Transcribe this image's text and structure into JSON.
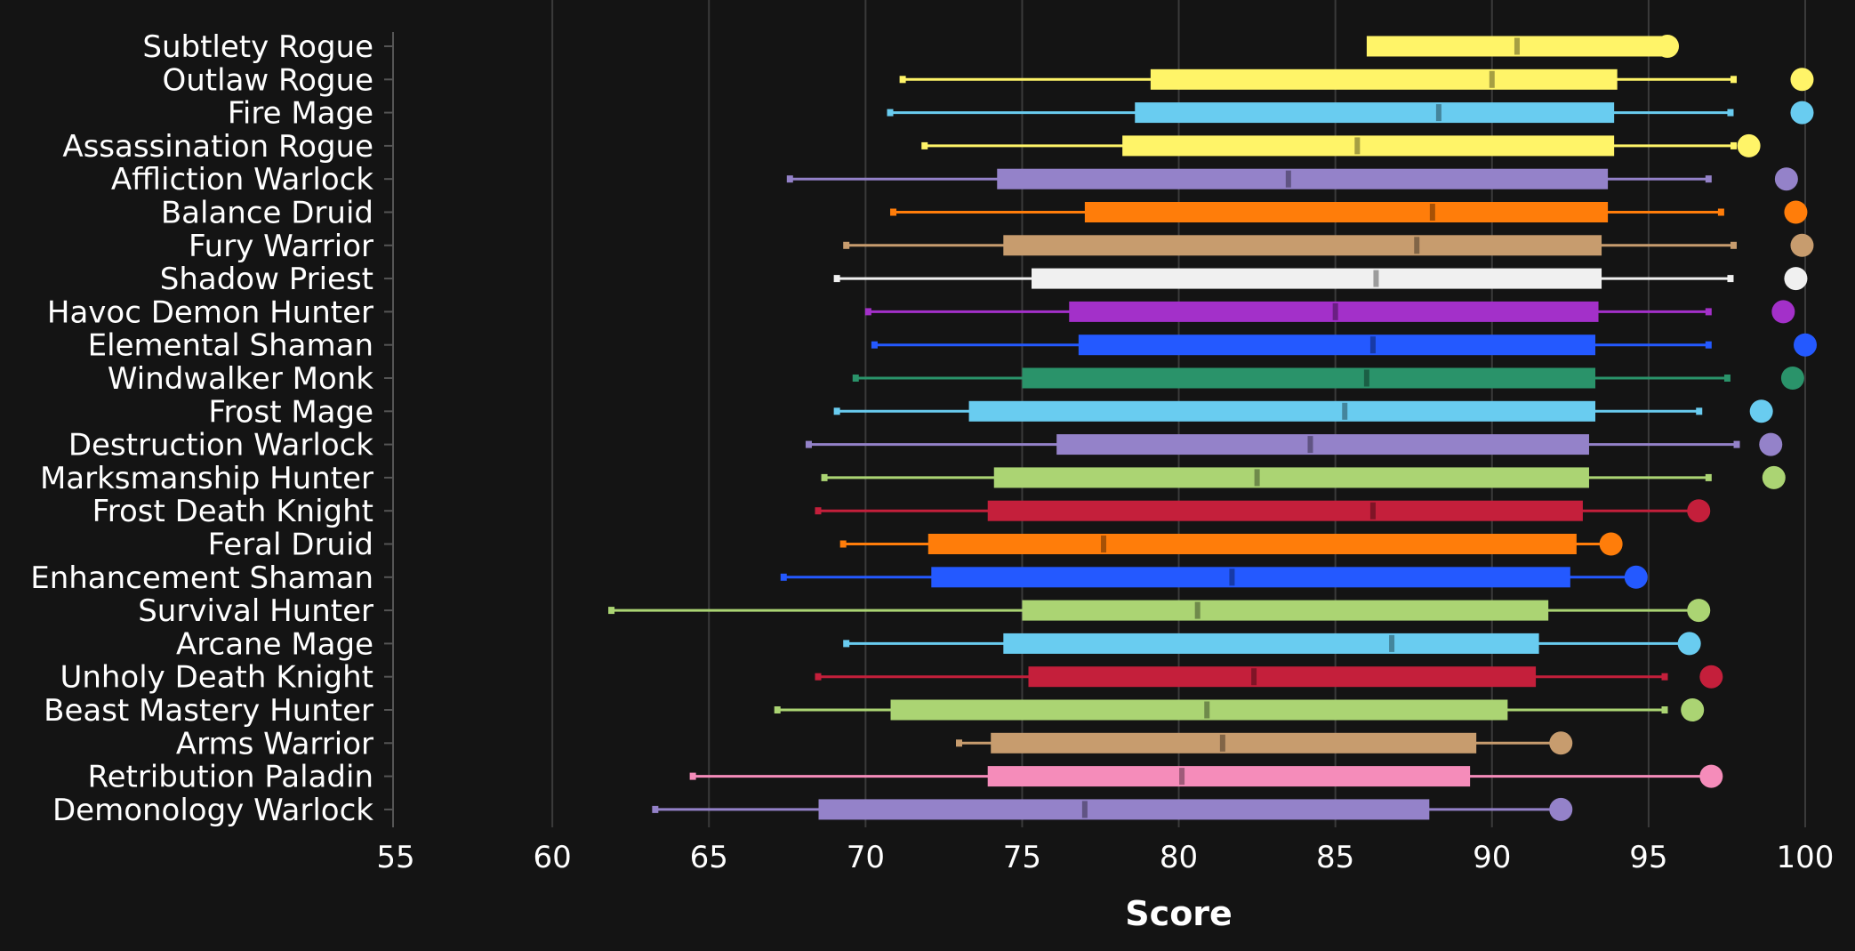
{
  "chart_data": {
    "type": "boxplot",
    "title": "",
    "xlabel": "Score",
    "ylabel": "",
    "xlim": [
      55,
      100
    ],
    "x_ticks": [
      55,
      60,
      65,
      70,
      75,
      80,
      85,
      90,
      95,
      100
    ],
    "grid": true,
    "legend": "none",
    "series": [
      {
        "name": "Subtlety Rogue",
        "color": "#FFF468",
        "q1": 86.0,
        "median": 90.8,
        "q3": 95.6,
        "max_point": 95.6
      },
      {
        "name": "Outlaw Rogue",
        "color": "#FFF468",
        "min": 71.2,
        "q1": 79.1,
        "median": 90.0,
        "q3": 94.0,
        "max": 97.7,
        "max_point": 99.9
      },
      {
        "name": "Fire Mage",
        "color": "#69CCF0",
        "min": 70.8,
        "q1": 78.6,
        "median": 88.3,
        "q3": 93.9,
        "max": 97.6,
        "max_point": 99.9
      },
      {
        "name": "Assassination Rogue",
        "color": "#FFF468",
        "min": 71.9,
        "q1": 78.2,
        "median": 85.7,
        "q3": 93.9,
        "max": 97.7,
        "max_point": 98.2
      },
      {
        "name": "Affliction Warlock",
        "color": "#9482C9",
        "min": 67.6,
        "q1": 74.2,
        "median": 83.5,
        "q3": 93.7,
        "max": 96.9,
        "max_point": 99.4
      },
      {
        "name": "Balance Druid",
        "color": "#FF7D0A",
        "min": 70.9,
        "q1": 77.0,
        "median": 88.1,
        "q3": 93.7,
        "max": 97.3,
        "max_point": 99.7
      },
      {
        "name": "Fury Warrior",
        "color": "#C79C6E",
        "min": 69.4,
        "q1": 74.4,
        "median": 87.6,
        "q3": 93.5,
        "max": 97.7,
        "max_point": 99.9
      },
      {
        "name": "Shadow Priest",
        "color": "#F0F0F0",
        "min": 69.1,
        "q1": 75.3,
        "median": 86.3,
        "q3": 93.5,
        "max": 97.6,
        "max_point": 99.7
      },
      {
        "name": "Havoc Demon Hunter",
        "color": "#A330C9",
        "min": 70.1,
        "q1": 76.5,
        "median": 85.0,
        "q3": 93.4,
        "max": 96.9,
        "max_point": 99.3
      },
      {
        "name": "Elemental Shaman",
        "color": "#2459FF",
        "min": 70.3,
        "q1": 76.8,
        "median": 86.2,
        "q3": 93.3,
        "max": 96.9,
        "max_point": 100.0
      },
      {
        "name": "Windwalker Monk",
        "color": "#2A936A",
        "min": 69.7,
        "q1": 75.0,
        "median": 86.0,
        "q3": 93.3,
        "max": 97.5,
        "max_point": 99.6
      },
      {
        "name": "Frost Mage",
        "color": "#69CCF0",
        "min": 69.1,
        "q1": 73.3,
        "median": 85.3,
        "q3": 93.3,
        "max": 96.6,
        "max_point": 98.6
      },
      {
        "name": "Destruction Warlock",
        "color": "#9482C9",
        "min": 68.2,
        "q1": 76.1,
        "median": 84.2,
        "q3": 93.1,
        "max": 97.8,
        "max_point": 98.9
      },
      {
        "name": "Marksmanship Hunter",
        "color": "#ABD473",
        "min": 68.7,
        "q1": 74.1,
        "median": 82.5,
        "q3": 93.1,
        "max": 96.9,
        "max_point": 99.0
      },
      {
        "name": "Frost Death Knight",
        "color": "#C41F3B",
        "min": 68.5,
        "q1": 73.9,
        "median": 86.2,
        "q3": 92.9,
        "max": null,
        "max_point": 96.6
      },
      {
        "name": "Feral Druid",
        "color": "#FF7D0A",
        "min": 69.3,
        "q1": 72.0,
        "median": 77.6,
        "q3": 92.7,
        "max": null,
        "max_point": 93.8
      },
      {
        "name": "Enhancement Shaman",
        "color": "#2459FF",
        "min": 67.4,
        "q1": 72.1,
        "median": 81.7,
        "q3": 92.5,
        "max": null,
        "max_point": 94.6
      },
      {
        "name": "Survival Hunter",
        "color": "#ABD473",
        "min": 61.9,
        "q1": 75.0,
        "median": 80.6,
        "q3": 91.8,
        "max": null,
        "max_point": 96.6
      },
      {
        "name": "Arcane Mage",
        "color": "#69CCF0",
        "min": 69.4,
        "q1": 74.4,
        "median": 86.8,
        "q3": 91.5,
        "max": null,
        "max_point": 96.3
      },
      {
        "name": "Unholy Death Knight",
        "color": "#C41F3B",
        "min": 68.5,
        "q1": 75.2,
        "median": 82.4,
        "q3": 91.4,
        "max": 95.5,
        "max_point": 97.0
      },
      {
        "name": "Beast Mastery Hunter",
        "color": "#ABD473",
        "min": 67.2,
        "q1": 70.8,
        "median": 80.9,
        "q3": 90.5,
        "max": 95.5,
        "max_point": 96.4
      },
      {
        "name": "Arms Warrior",
        "color": "#C79C6E",
        "min": 73.0,
        "q1": 74.0,
        "median": 81.4,
        "q3": 89.5,
        "max": null,
        "max_point": 92.2
      },
      {
        "name": "Retribution Paladin",
        "color": "#F58CBA",
        "min": 64.5,
        "q1": 73.9,
        "median": 80.1,
        "q3": 89.3,
        "max": null,
        "max_point": 97.0
      },
      {
        "name": "Demonology Warlock",
        "color": "#9482C9",
        "min": 63.3,
        "q1": 68.5,
        "median": 77.0,
        "q3": 88.0,
        "max": null,
        "max_point": 92.2
      }
    ]
  }
}
